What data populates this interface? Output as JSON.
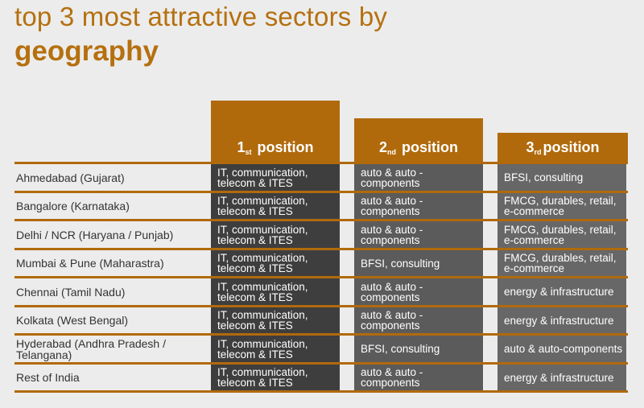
{
  "title": {
    "line1": "top 3 most attractive sectors by",
    "line2": "geography"
  },
  "headers": [
    {
      "num": "1",
      "sup": "st",
      "label": "position"
    },
    {
      "num": "2",
      "sup": "nd",
      "label": "position"
    },
    {
      "num": "3",
      "sup": "rd",
      "label": "position"
    }
  ],
  "rows": [
    {
      "region": "Ahmedabad (Gujarat)",
      "cells": [
        "IT, communication, telecom & ITES",
        "auto & auto - components",
        "BFSI, consulting"
      ]
    },
    {
      "region": "Bangalore (Karnataka)",
      "cells": [
        "IT, communication, telecom & ITES",
        "auto & auto - components",
        "FMCG, durables, retail, e-commerce"
      ]
    },
    {
      "region": "Delhi / NCR (Haryana / Punjab)",
      "cells": [
        "IT, communication, telecom & ITES",
        "auto & auto - components",
        "FMCG, durables, retail, e-commerce"
      ]
    },
    {
      "region": "Mumbai & Pune (Maharastra)",
      "cells": [
        "IT, communication, telecom & ITES",
        "BFSI, consulting",
        "FMCG, durables, retail, e-commerce"
      ]
    },
    {
      "region": "Chennai (Tamil Nadu)",
      "cells": [
        "IT, communication, telecom & ITES",
        "auto & auto - components",
        "energy & infrastructure"
      ]
    },
    {
      "region": "Kolkata (West Bengal)",
      "cells": [
        "IT, communication, telecom & ITES",
        "auto & auto - components",
        "energy & infrastructure"
      ]
    },
    {
      "region": "Hyderabad (Andhra Pradesh / Telangana)",
      "cells": [
        "IT, communication, telecom & ITES",
        "BFSI, consulting",
        "auto & auto-components"
      ]
    },
    {
      "region": "Rest of India",
      "cells": [
        "IT, communication, telecom & ITES",
        "auto & auto - components",
        "energy & infrastructure"
      ]
    }
  ]
}
